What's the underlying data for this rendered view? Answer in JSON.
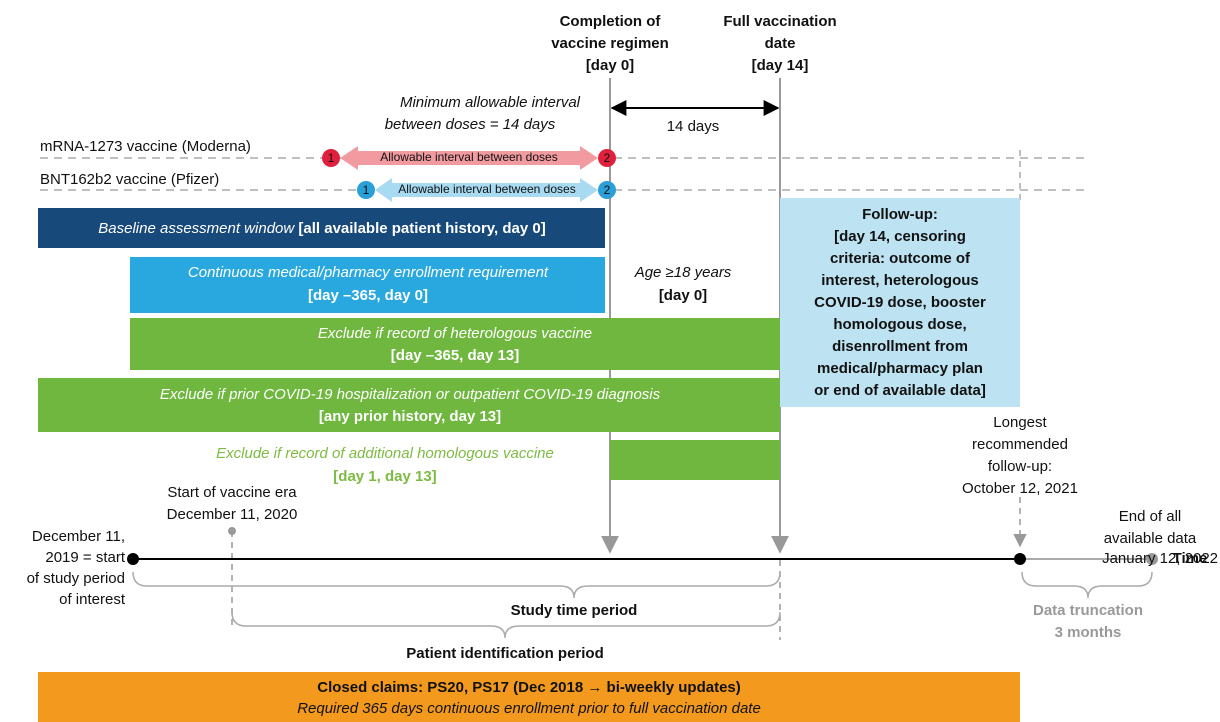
{
  "header": {
    "completion": [
      "Completion of",
      "vaccine regimen",
      "[day 0]"
    ],
    "full_vaccination": [
      "Full vaccination",
      "date",
      "[day 14]"
    ]
  },
  "min_interval": [
    "Minimum allowable interval",
    "between doses = 14 days"
  ],
  "interval_length": "14 days",
  "vaccines": [
    {
      "name": "mRNA-1273 vaccine (Moderna)",
      "dose1": "1",
      "dose2": "2",
      "interval": "Allowable interval between doses"
    },
    {
      "name": "BNT162b2 vaccine (Pfizer)",
      "dose1": "1",
      "dose2": "2",
      "interval": "Allowable interval between doses"
    }
  ],
  "windows": {
    "baseline": {
      "label": "Baseline assessment window",
      "range": "[all available patient history, day 0]"
    },
    "enrollment": {
      "label": "Continuous medical/pharmacy enrollment requirement",
      "range": "[day –365, day 0]"
    },
    "age": {
      "label": "Age ≥18 years",
      "range": "[day 0]"
    },
    "heterologous": {
      "label": "Exclude if record of heterologous vaccine",
      "range": "[day –365, day 13]"
    },
    "prior_covid": {
      "label": "Exclude if prior COVID-19 hospitalization or outpatient COVID-19 diagnosis",
      "range": "[any prior history, day 13]"
    },
    "homologous": {
      "label": "Exclude if record of additional homologous vaccine",
      "range": "[day 1, day 13]"
    },
    "follow_up": {
      "title": "Follow-up:",
      "lines": [
        "[day 14, censoring",
        "criteria: outcome of",
        "interest, heterologous",
        "COVID-19 dose, booster",
        "homologous dose,",
        "disenrollment from",
        "medical/pharmacy plan",
        "or end of available data]"
      ]
    }
  },
  "timeline": {
    "study_start": [
      "December 11,",
      "2019 = start",
      "of study period",
      "of interest"
    ],
    "vaccine_era": [
      "Start of vaccine era",
      "December 11, 2020"
    ],
    "longest_follow_up": [
      "Longest",
      "recommended",
      "follow-up:",
      "October 12, 2021"
    ],
    "data_end": [
      "End of all",
      "available data",
      "January 12, 2022"
    ],
    "axis": "Time",
    "study_period": "Study time period",
    "identification_period": "Patient identification period",
    "truncation": [
      "Data truncation",
      "3 months"
    ]
  },
  "closed_claims": {
    "title": "Closed claims: PS20, PS17 (Dec 2018 → bi-weekly updates)",
    "note": "Required 365 days continuous enrollment prior to full vaccination date"
  }
}
